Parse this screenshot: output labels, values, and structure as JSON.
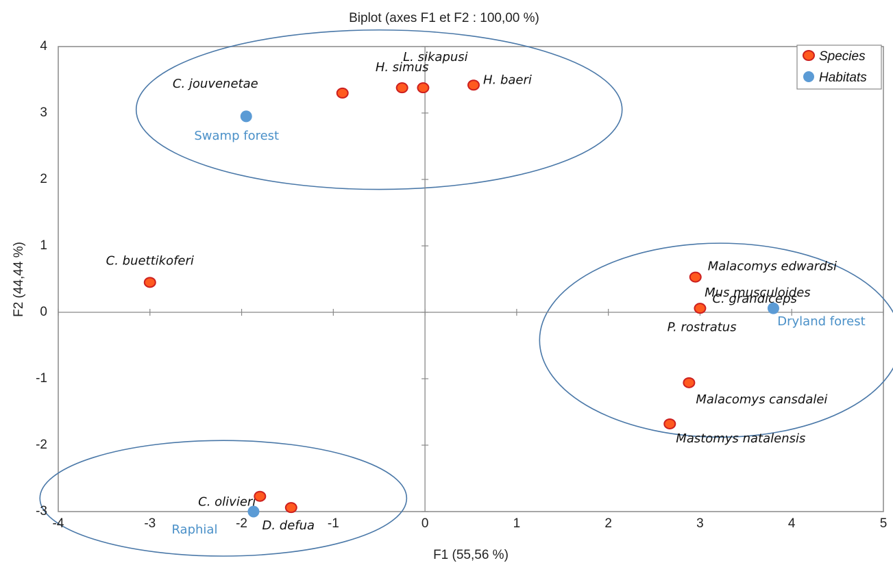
{
  "chart_data": {
    "type": "scatter",
    "title": "Biplot (axes F1 et F2 : 100,00 %)",
    "xlabel": "F1 (55,56 %)",
    "ylabel": "F2 (44,44 %)",
    "xlim": [
      -4,
      5
    ],
    "ylim": [
      -3,
      4
    ],
    "xticks": [
      "-4",
      "-3",
      "-2",
      "-1",
      "0",
      "1",
      "2",
      "3",
      "4",
      "5"
    ],
    "yticks": [
      "-3",
      "-2",
      "-1",
      "0",
      "1",
      "2",
      "3",
      "4"
    ],
    "legend_position": "top-right",
    "series": [
      {
        "name": "Species",
        "color": "#ff5a1f",
        "edge_color": "#cc1f1f",
        "points": [
          {
            "label": "C. jouvenetae",
            "x": -0.9,
            "y": 3.3
          },
          {
            "label": "H. simus",
            "x": -0.25,
            "y": 3.38
          },
          {
            "label": "L. sikapusi",
            "x": -0.02,
            "y": 3.38
          },
          {
            "label": "H. baeri",
            "x": 0.53,
            "y": 3.42
          },
          {
            "label": "C. buettikoferi",
            "x": -3.0,
            "y": 0.45
          },
          {
            "label": "Malacomys edwardsi",
            "x": 2.95,
            "y": 0.53
          },
          {
            "label": "C. grandiceps",
            "x": 3.0,
            "y": 0.06
          },
          {
            "label": "Malacomys cansdalei",
            "x": 2.88,
            "y": -1.06
          },
          {
            "label": "Mastomys natalensis",
            "x": 2.67,
            "y": -1.68
          },
          {
            "label": "C. olivieri",
            "x": -1.8,
            "y": -2.77
          },
          {
            "label": "D. defua",
            "x": -1.46,
            "y": -2.94
          }
        ],
        "extra_labels": [
          "Mus musculoides",
          "P. rostratus"
        ]
      },
      {
        "name": "Habitats",
        "color": "#5b9bd5",
        "points": [
          {
            "label": "Swamp forest",
            "x": -1.95,
            "y": 2.95
          },
          {
            "label": "Dryland forest",
            "x": 3.8,
            "y": 0.06
          },
          {
            "label": "Raphial",
            "x": -1.87,
            "y": -3.0
          }
        ]
      }
    ],
    "ellipses": [
      {
        "cx": -0.5,
        "cy": 3.05,
        "rx": 2.65,
        "ry": 1.2
      },
      {
        "cx": 3.22,
        "cy": -0.42,
        "rx": 1.97,
        "ry": 1.46
      },
      {
        "cx": -2.2,
        "cy": -2.8,
        "rx": 2.0,
        "ry": 0.87
      }
    ]
  }
}
